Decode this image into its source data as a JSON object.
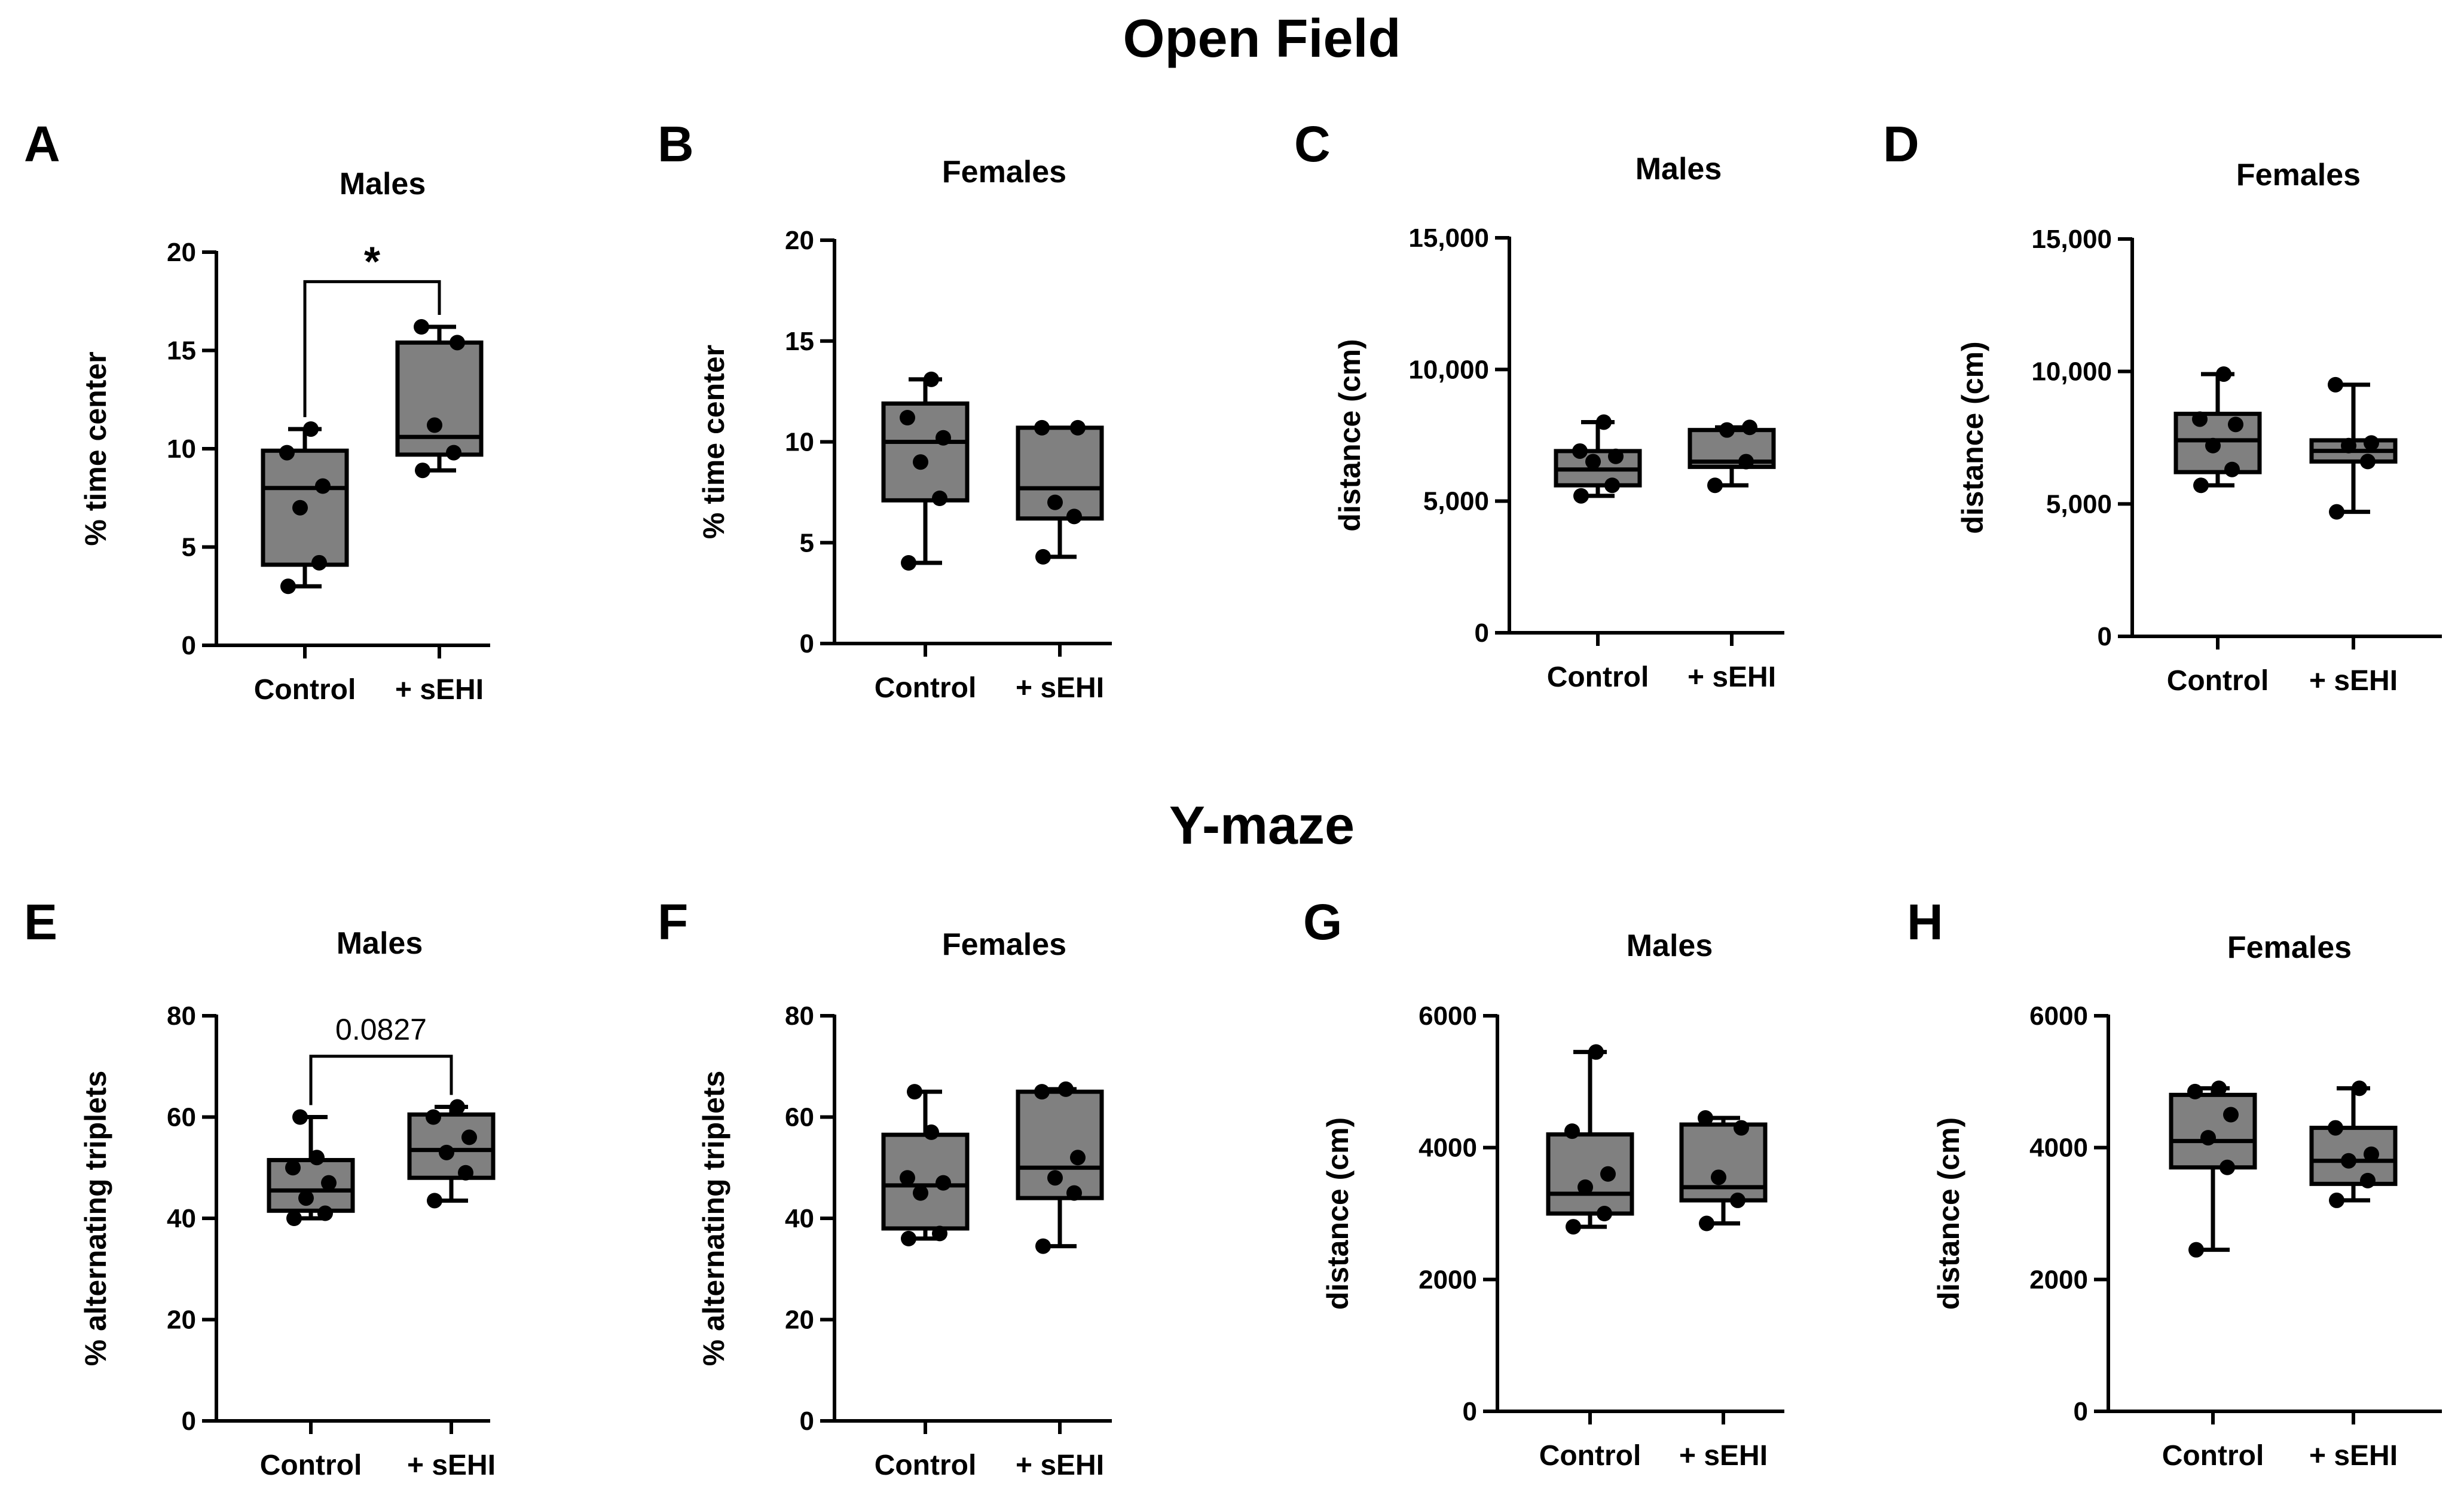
{
  "figure": {
    "section_titles": [
      "Open  Field",
      "Y-maze"
    ]
  },
  "chart_data": [
    {
      "panel": "A",
      "title": "Males",
      "type": "box",
      "ylabel": "% time center",
      "ylim": [
        0,
        20
      ],
      "yticks": [
        "0",
        "5",
        "10",
        "15",
        "20"
      ],
      "ytick_values": [
        0,
        5,
        10,
        15,
        20
      ],
      "categories": [
        "Control",
        "+ sEHI"
      ],
      "boxes": [
        {
          "min": 3,
          "q1": 4.1,
          "median": 8,
          "q3": 9.9,
          "max": 11,
          "points": [
            3,
            4.2,
            7,
            8.1,
            9.8,
            11
          ]
        },
        {
          "min": 8.9,
          "q1": 9.7,
          "median": 10.6,
          "q3": 15.4,
          "max": 16.2,
          "points": [
            8.9,
            9.8,
            11.2,
            15.4,
            16.2
          ]
        }
      ],
      "annotation": {
        "text": "*",
        "y": 18.5
      }
    },
    {
      "panel": "B",
      "title": "Females",
      "type": "box",
      "ylabel": "% time center",
      "ylim": [
        0,
        20
      ],
      "yticks": [
        "0",
        "5",
        "10",
        "15",
        "20"
      ],
      "ytick_values": [
        0,
        5,
        10,
        15,
        20
      ],
      "categories": [
        "Control",
        "+ sEHI"
      ],
      "boxes": [
        {
          "min": 4,
          "q1": 7.1,
          "median": 10,
          "q3": 11.9,
          "max": 13.1,
          "points": [
            4,
            7.2,
            9,
            10.2,
            11.2,
            13.1
          ]
        },
        {
          "min": 4.3,
          "q1": 6.2,
          "median": 7.7,
          "q3": 10.7,
          "max": 10.7,
          "points": [
            4.3,
            6.3,
            7,
            10.7,
            10.7
          ]
        }
      ]
    },
    {
      "panel": "C",
      "title": "Males",
      "type": "box",
      "ylabel": "distance (cm)",
      "ylim": [
        0,
        15000
      ],
      "yticks": [
        "0",
        "5,000",
        "10,000",
        "15,000"
      ],
      "ytick_values": [
        0,
        5000,
        10000,
        15000
      ],
      "categories": [
        "Control",
        "+ sEHI"
      ],
      "boxes": [
        {
          "min": 5200,
          "q1": 5600,
          "median": 6200,
          "q3": 6900,
          "max": 8000,
          "points": [
            5200,
            5600,
            6500,
            6700,
            6900,
            8000
          ]
        },
        {
          "min": 5600,
          "q1": 6300,
          "median": 6500,
          "q3": 7700,
          "max": 7800,
          "points": [
            5600,
            6500,
            7700,
            7800
          ]
        }
      ]
    },
    {
      "panel": "D",
      "title": "Females",
      "type": "box",
      "ylabel": "distance (cm)",
      "ylim": [
        0,
        15000
      ],
      "yticks": [
        "0",
        "5,000",
        "10,000",
        "15,000"
      ],
      "ytick_values": [
        0,
        5000,
        10000,
        15000
      ],
      "categories": [
        "Control",
        "+ sEHI"
      ],
      "boxes": [
        {
          "min": 5700,
          "q1": 6200,
          "median": 7400,
          "q3": 8400,
          "max": 9900,
          "points": [
            5700,
            6300,
            7200,
            8000,
            8200,
            9900
          ]
        },
        {
          "min": 4700,
          "q1": 6600,
          "median": 7000,
          "q3": 7400,
          "max": 9500,
          "points": [
            4700,
            6600,
            7200,
            7300,
            9500
          ]
        }
      ]
    },
    {
      "panel": "E",
      "title": "Males",
      "type": "box",
      "ylabel": "% alternating triplets",
      "ylim": [
        0,
        80
      ],
      "yticks": [
        "0",
        "20",
        "40",
        "60",
        "80"
      ],
      "ytick_values": [
        0,
        20,
        40,
        60,
        80
      ],
      "categories": [
        "Control",
        "+ sEHI"
      ],
      "boxes": [
        {
          "min": 40,
          "q1": 41.5,
          "median": 45.5,
          "q3": 51.5,
          "max": 60,
          "points": [
            40,
            41,
            44,
            47,
            50,
            52,
            60
          ]
        },
        {
          "min": 43.5,
          "q1": 48,
          "median": 53.5,
          "q3": 60.5,
          "max": 62,
          "points": [
            43.5,
            49,
            53,
            56,
            60,
            62
          ]
        }
      ],
      "annotation": {
        "text": "0.0827",
        "y": 72
      }
    },
    {
      "panel": "F",
      "title": "Females",
      "type": "box",
      "ylabel": "% alternating triplets",
      "ylim": [
        0,
        80
      ],
      "yticks": [
        "0",
        "20",
        "40",
        "60",
        "80"
      ],
      "ytick_values": [
        0,
        20,
        40,
        60,
        80
      ],
      "categories": [
        "Control",
        "+ sEHI"
      ],
      "boxes": [
        {
          "min": 36,
          "q1": 38,
          "median": 46.5,
          "q3": 56.5,
          "max": 65,
          "points": [
            36,
            37,
            45,
            47,
            48,
            57,
            65
          ]
        },
        {
          "min": 34.5,
          "q1": 44,
          "median": 50,
          "q3": 65,
          "max": 65.5,
          "points": [
            34.5,
            45,
            48,
            52,
            65,
            65.5
          ]
        }
      ]
    },
    {
      "panel": "G",
      "title": "Males",
      "type": "box",
      "ylabel": "distance (cm)",
      "ylim": [
        0,
        6000
      ],
      "yticks": [
        "0",
        "2000",
        "4000",
        "6000"
      ],
      "ytick_values": [
        0,
        2000,
        4000,
        6000
      ],
      "categories": [
        "Control",
        "+ sEHI"
      ],
      "boxes": [
        {
          "min": 2800,
          "q1": 3000,
          "median": 3300,
          "q3": 4200,
          "max": 5450,
          "points": [
            2800,
            3000,
            3400,
            3600,
            4250,
            5450
          ]
        },
        {
          "min": 2850,
          "q1": 3200,
          "median": 3400,
          "q3": 4350,
          "max": 4450,
          "points": [
            2850,
            3200,
            3550,
            4300,
            4450
          ]
        }
      ]
    },
    {
      "panel": "H",
      "title": "Females",
      "type": "box",
      "ylabel": "distance (cm)",
      "ylim": [
        0,
        6000
      ],
      "yticks": [
        "0",
        "2000",
        "4000",
        "6000"
      ],
      "ytick_values": [
        0,
        2000,
        4000,
        6000
      ],
      "categories": [
        "Control",
        "+ sEHI"
      ],
      "boxes": [
        {
          "min": 2450,
          "q1": 3700,
          "median": 4100,
          "q3": 4800,
          "max": 4900,
          "points": [
            2450,
            3700,
            4150,
            4500,
            4850,
            4900
          ]
        },
        {
          "min": 3200,
          "q1": 3450,
          "median": 3800,
          "q3": 4300,
          "max": 4900,
          "points": [
            3200,
            3500,
            3800,
            3900,
            4300,
            4900
          ]
        }
      ]
    }
  ]
}
